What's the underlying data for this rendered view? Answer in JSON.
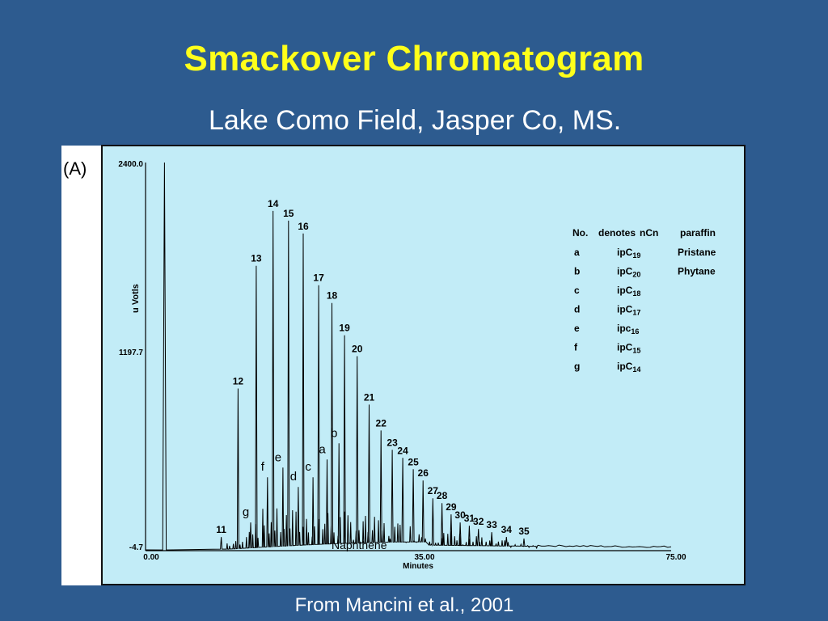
{
  "slide": {
    "title": "Smackover Chromatogram",
    "subtitle": "Lake Como Field, Jasper Co, MS.",
    "panel_label": "(A)",
    "caption": "From Mancini et al., 2001",
    "colors": {
      "background": "#2d5b8f",
      "title": "#ffff1a",
      "chart_bg": "#c2ecf7"
    }
  },
  "chart_data": {
    "type": "line",
    "xlabel": "Minutes",
    "ylabel": "u  Votls",
    "xlim": [
      0,
      75
    ],
    "ylim": [
      -4.7,
      2400
    ],
    "x_ticks": [
      "0.00",
      "35.00",
      "75.00"
    ],
    "y_ticks": [
      "2400.0",
      "1197.7",
      "-4.7"
    ],
    "annotation": "Naphthene",
    "solvent_peak": {
      "x": 2.7,
      "y": 2400
    },
    "nc_peaks": [
      {
        "label": "11",
        "x": 10.8,
        "y": 80
      },
      {
        "label": "12",
        "x": 13.2,
        "y": 1000
      },
      {
        "label": "13",
        "x": 15.8,
        "y": 1760
      },
      {
        "label": "14",
        "x": 18.2,
        "y": 2100
      },
      {
        "label": "15",
        "x": 20.4,
        "y": 2040
      },
      {
        "label": "16",
        "x": 22.5,
        "y": 1960
      },
      {
        "label": "17",
        "x": 24.7,
        "y": 1640
      },
      {
        "label": "18",
        "x": 26.6,
        "y": 1530
      },
      {
        "label": "19",
        "x": 28.4,
        "y": 1330
      },
      {
        "label": "20",
        "x": 30.2,
        "y": 1200
      },
      {
        "label": "21",
        "x": 31.9,
        "y": 900
      },
      {
        "label": "22",
        "x": 33.6,
        "y": 740
      },
      {
        "label": "23",
        "x": 35.2,
        "y": 620
      },
      {
        "label": "24",
        "x": 36.7,
        "y": 570
      },
      {
        "label": "25",
        "x": 38.2,
        "y": 500
      },
      {
        "label": "26",
        "x": 39.6,
        "y": 430
      },
      {
        "label": "27",
        "x": 41.0,
        "y": 320
      },
      {
        "label": "28",
        "x": 42.3,
        "y": 290
      },
      {
        "label": "29",
        "x": 43.6,
        "y": 220
      },
      {
        "label": "30",
        "x": 44.9,
        "y": 170
      },
      {
        "label": "31",
        "x": 46.2,
        "y": 150
      },
      {
        "label": "32",
        "x": 47.5,
        "y": 130
      },
      {
        "label": "33",
        "x": 49.4,
        "y": 110
      },
      {
        "label": "34",
        "x": 51.5,
        "y": 80
      },
      {
        "label": "35",
        "x": 54.0,
        "y": 70
      }
    ],
    "isoprenoid_peaks": [
      {
        "label": "g",
        "x": 15.0,
        "y": 170
      },
      {
        "label": "f",
        "x": 17.4,
        "y": 450
      },
      {
        "label": "e",
        "x": 19.6,
        "y": 510
      },
      {
        "label": "d",
        "x": 21.8,
        "y": 390
      },
      {
        "label": "c",
        "x": 23.9,
        "y": 450
      },
      {
        "label": "a",
        "x": 25.9,
        "y": 560
      },
      {
        "label": "b",
        "x": 27.6,
        "y": 660
      }
    ],
    "legend": {
      "header": [
        "No.",
        "denotes",
        "nCn",
        "paraffin"
      ],
      "rows": [
        {
          "key": "a",
          "compound": "ipC",
          "sub": "19",
          "name": "Pristane"
        },
        {
          "key": "b",
          "compound": "ipC",
          "sub": "20",
          "name": "Phytane"
        },
        {
          "key": "c",
          "compound": "ipC",
          "sub": "18",
          "name": ""
        },
        {
          "key": "d",
          "compound": "ipC",
          "sub": "17",
          "name": ""
        },
        {
          "key": "e",
          "compound": "ipc",
          "sub": "16",
          "name": ""
        },
        {
          "key": "f",
          "compound": "ipC",
          "sub": "15",
          "name": ""
        },
        {
          "key": "g",
          "compound": "ipC",
          "sub": "14",
          "name": ""
        }
      ]
    }
  }
}
